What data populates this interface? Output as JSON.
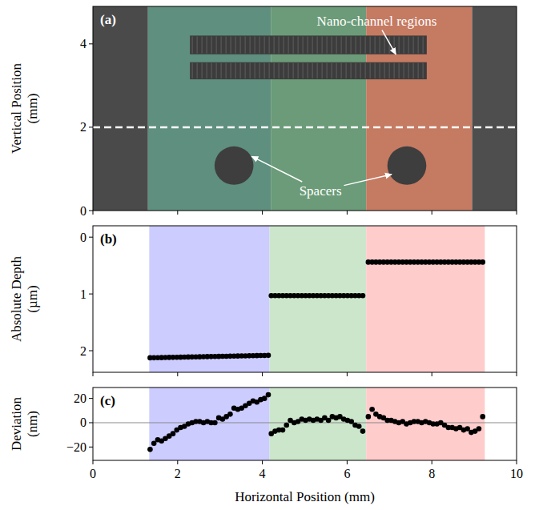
{
  "chart_data": [
    {
      "type": "image",
      "panel": "(a)",
      "ylabel": "Vertical Position (mm)",
      "xlim": [
        0,
        10
      ],
      "xticks": [
        0,
        2,
        4,
        6,
        8,
        10
      ],
      "ylim": [
        0,
        4.9
      ],
      "yticks": [
        0,
        2,
        4
      ],
      "tick_labels": "y",
      "regions": [
        {
          "x0": 0,
          "x1": 1.3,
          "color": "#4a4a4a"
        },
        {
          "x0": 1.3,
          "x1": 4.2,
          "color": "#5f8f7e"
        },
        {
          "x0": 4.2,
          "x1": 6.45,
          "color": "#6b9b78"
        },
        {
          "x0": 6.45,
          "x1": 8.95,
          "color": "#c57a62"
        },
        {
          "x0": 8.95,
          "x1": 10,
          "color": "#4e4e4e"
        }
      ],
      "channels": [
        {
          "x0": 2.29,
          "x1": 7.88,
          "y0": 3.75,
          "y1": 4.2
        },
        {
          "x0": 2.29,
          "x1": 7.88,
          "y0": 3.15,
          "y1": 3.56
        }
      ],
      "spacers": [
        {
          "x": 3.33,
          "y": 1.08,
          "r": 0.46
        },
        {
          "x": 7.41,
          "y": 1.08,
          "r": 0.46
        }
      ],
      "dashed_line_y": 2,
      "annotations": [
        {
          "text": "Nano-channel regions",
          "x": 6.7,
          "y": 4.56,
          "arrows": [
            [
              7.15,
              3.75
            ]
          ]
        },
        {
          "text": "Spacers",
          "x": 5.37,
          "y": 0.48,
          "arrows": [
            [
              3.75,
              1.3
            ],
            [
              7.05,
              0.87
            ]
          ]
        }
      ]
    },
    {
      "type": "scatter",
      "panel": "(b)",
      "ylabel": "Absolute Depth (µm)",
      "xlim": [
        0,
        10
      ],
      "xticks": [
        0,
        2,
        4,
        6,
        8,
        10
      ],
      "ylim": [
        2.38,
        -0.2
      ],
      "yticks": [
        0,
        1,
        2
      ],
      "tick_labels": "y",
      "bands": [
        {
          "x0": 1.33,
          "x1": 4.17,
          "color": "#ccccff"
        },
        {
          "x0": 4.17,
          "x1": 6.45,
          "color": "#cce6cc"
        },
        {
          "x0": 6.45,
          "x1": 9.25,
          "color": "#ffcccc"
        }
      ],
      "series": [
        {
          "color": "#000000",
          "marker": "circle",
          "x": [
            1.35,
            1.44,
            1.53,
            1.62,
            1.71,
            1.8,
            1.89,
            1.98,
            2.07,
            2.16,
            2.25,
            2.34,
            2.43,
            2.52,
            2.61,
            2.7,
            2.79,
            2.88,
            2.97,
            3.06,
            3.15,
            3.24,
            3.33,
            3.42,
            3.51,
            3.6,
            3.69,
            3.78,
            3.87,
            3.96,
            4.05,
            4.14
          ],
          "values": [
            2.125,
            2.124,
            2.122,
            2.121,
            2.119,
            2.118,
            2.117,
            2.115,
            2.114,
            2.112,
            2.111,
            2.11,
            2.108,
            2.107,
            2.105,
            2.104,
            2.103,
            2.101,
            2.1,
            2.098,
            2.097,
            2.096,
            2.094,
            2.093,
            2.091,
            2.09,
            2.089,
            2.087,
            2.086,
            2.084,
            2.083,
            2.082
          ]
        },
        {
          "color": "#000000",
          "marker": "circle",
          "x": [
            4.21,
            4.3,
            4.39,
            4.48,
            4.57,
            4.66,
            4.75,
            4.84,
            4.93,
            5.02,
            5.11,
            5.2,
            5.29,
            5.38,
            5.47,
            5.56,
            5.65,
            5.74,
            5.83,
            5.92,
            6.01,
            6.1,
            6.19,
            6.28,
            6.37
          ],
          "values": [
            1.03,
            1.03,
            1.03,
            1.03,
            1.03,
            1.03,
            1.03,
            1.03,
            1.03,
            1.03,
            1.03,
            1.03,
            1.03,
            1.03,
            1.03,
            1.03,
            1.03,
            1.03,
            1.03,
            1.03,
            1.03,
            1.03,
            1.03,
            1.03,
            1.03
          ]
        },
        {
          "color": "#000000",
          "marker": "circle",
          "x": [
            6.5,
            6.59,
            6.68,
            6.77,
            6.86,
            6.95,
            7.04,
            7.13,
            7.22,
            7.31,
            7.4,
            7.49,
            7.58,
            7.67,
            7.76,
            7.85,
            7.94,
            8.03,
            8.12,
            8.21,
            8.3,
            8.39,
            8.48,
            8.57,
            8.66,
            8.75,
            8.84,
            8.93,
            9.02,
            9.11,
            9.2
          ],
          "values": [
            0.44,
            0.44,
            0.44,
            0.44,
            0.44,
            0.44,
            0.44,
            0.44,
            0.44,
            0.44,
            0.44,
            0.44,
            0.44,
            0.44,
            0.44,
            0.44,
            0.44,
            0.44,
            0.44,
            0.44,
            0.44,
            0.44,
            0.44,
            0.44,
            0.44,
            0.44,
            0.44,
            0.44,
            0.44,
            0.44,
            0.44
          ]
        }
      ]
    },
    {
      "type": "scatter",
      "panel": "(c)",
      "ylabel": "Deviation (nm)",
      "xlabel": "Horizontal Position (mm)",
      "xlim": [
        0,
        10
      ],
      "xticks": [
        0,
        2,
        4,
        6,
        8,
        10
      ],
      "ylim": [
        -31,
        29
      ],
      "yticks": [
        {
          "value": -20,
          "label": "−20"
        },
        0,
        20
      ],
      "hline": 0,
      "bands": [
        {
          "x0": 1.33,
          "x1": 4.17,
          "color": "#ccccff"
        },
        {
          "x0": 4.17,
          "x1": 6.45,
          "color": "#cce6cc"
        },
        {
          "x0": 6.45,
          "x1": 9.25,
          "color": "#ffcccc"
        }
      ],
      "series": [
        {
          "color": "#000000",
          "marker": "circle",
          "x": [
            1.35,
            1.44,
            1.53,
            1.62,
            1.71,
            1.8,
            1.89,
            1.98,
            2.07,
            2.16,
            2.25,
            2.34,
            2.43,
            2.52,
            2.61,
            2.7,
            2.79,
            2.88,
            2.97,
            3.06,
            3.15,
            3.24,
            3.33,
            3.42,
            3.51,
            3.6,
            3.69,
            3.78,
            3.87,
            3.96,
            4.05,
            4.14
          ],
          "values": [
            -22,
            -17,
            -14,
            -15,
            -13,
            -11,
            -9,
            -6,
            -4,
            -3,
            -1,
            0,
            1,
            1,
            0,
            1,
            0,
            0,
            4,
            3,
            5,
            7,
            12,
            11,
            12,
            14,
            16,
            18,
            17,
            19,
            20,
            23
          ]
        },
        {
          "color": "#000000",
          "marker": "circle",
          "x": [
            4.21,
            4.3,
            4.39,
            4.48,
            4.57,
            4.66,
            4.75,
            4.84,
            4.93,
            5.02,
            5.11,
            5.2,
            5.29,
            5.38,
            5.47,
            5.56,
            5.65,
            5.74,
            5.83,
            5.92,
            6.01,
            6.1,
            6.19,
            6.28,
            6.37
          ],
          "values": [
            -9,
            -7,
            -6,
            -6,
            -2,
            2,
            0,
            1,
            3,
            2,
            3,
            2,
            3,
            2,
            4,
            2,
            5,
            4,
            5,
            3,
            2,
            1,
            -2,
            -3,
            -7
          ]
        },
        {
          "color": "#000000",
          "marker": "circle",
          "x": [
            6.5,
            6.59,
            6.68,
            6.77,
            6.86,
            6.95,
            7.04,
            7.13,
            7.22,
            7.31,
            7.4,
            7.49,
            7.58,
            7.67,
            7.76,
            7.85,
            7.94,
            8.03,
            8.12,
            8.21,
            8.3,
            8.39,
            8.48,
            8.57,
            8.66,
            8.75,
            8.84,
            8.93,
            9.02,
            9.11,
            9.2
          ],
          "values": [
            5,
            11,
            7,
            5,
            4,
            2,
            2,
            1,
            0,
            1,
            -1,
            0,
            1,
            1,
            0,
            1,
            0,
            -1,
            -1,
            0,
            -2,
            -4,
            -4,
            -5,
            -4,
            -6,
            -5,
            -8,
            -7,
            -5,
            5
          ]
        }
      ]
    }
  ]
}
